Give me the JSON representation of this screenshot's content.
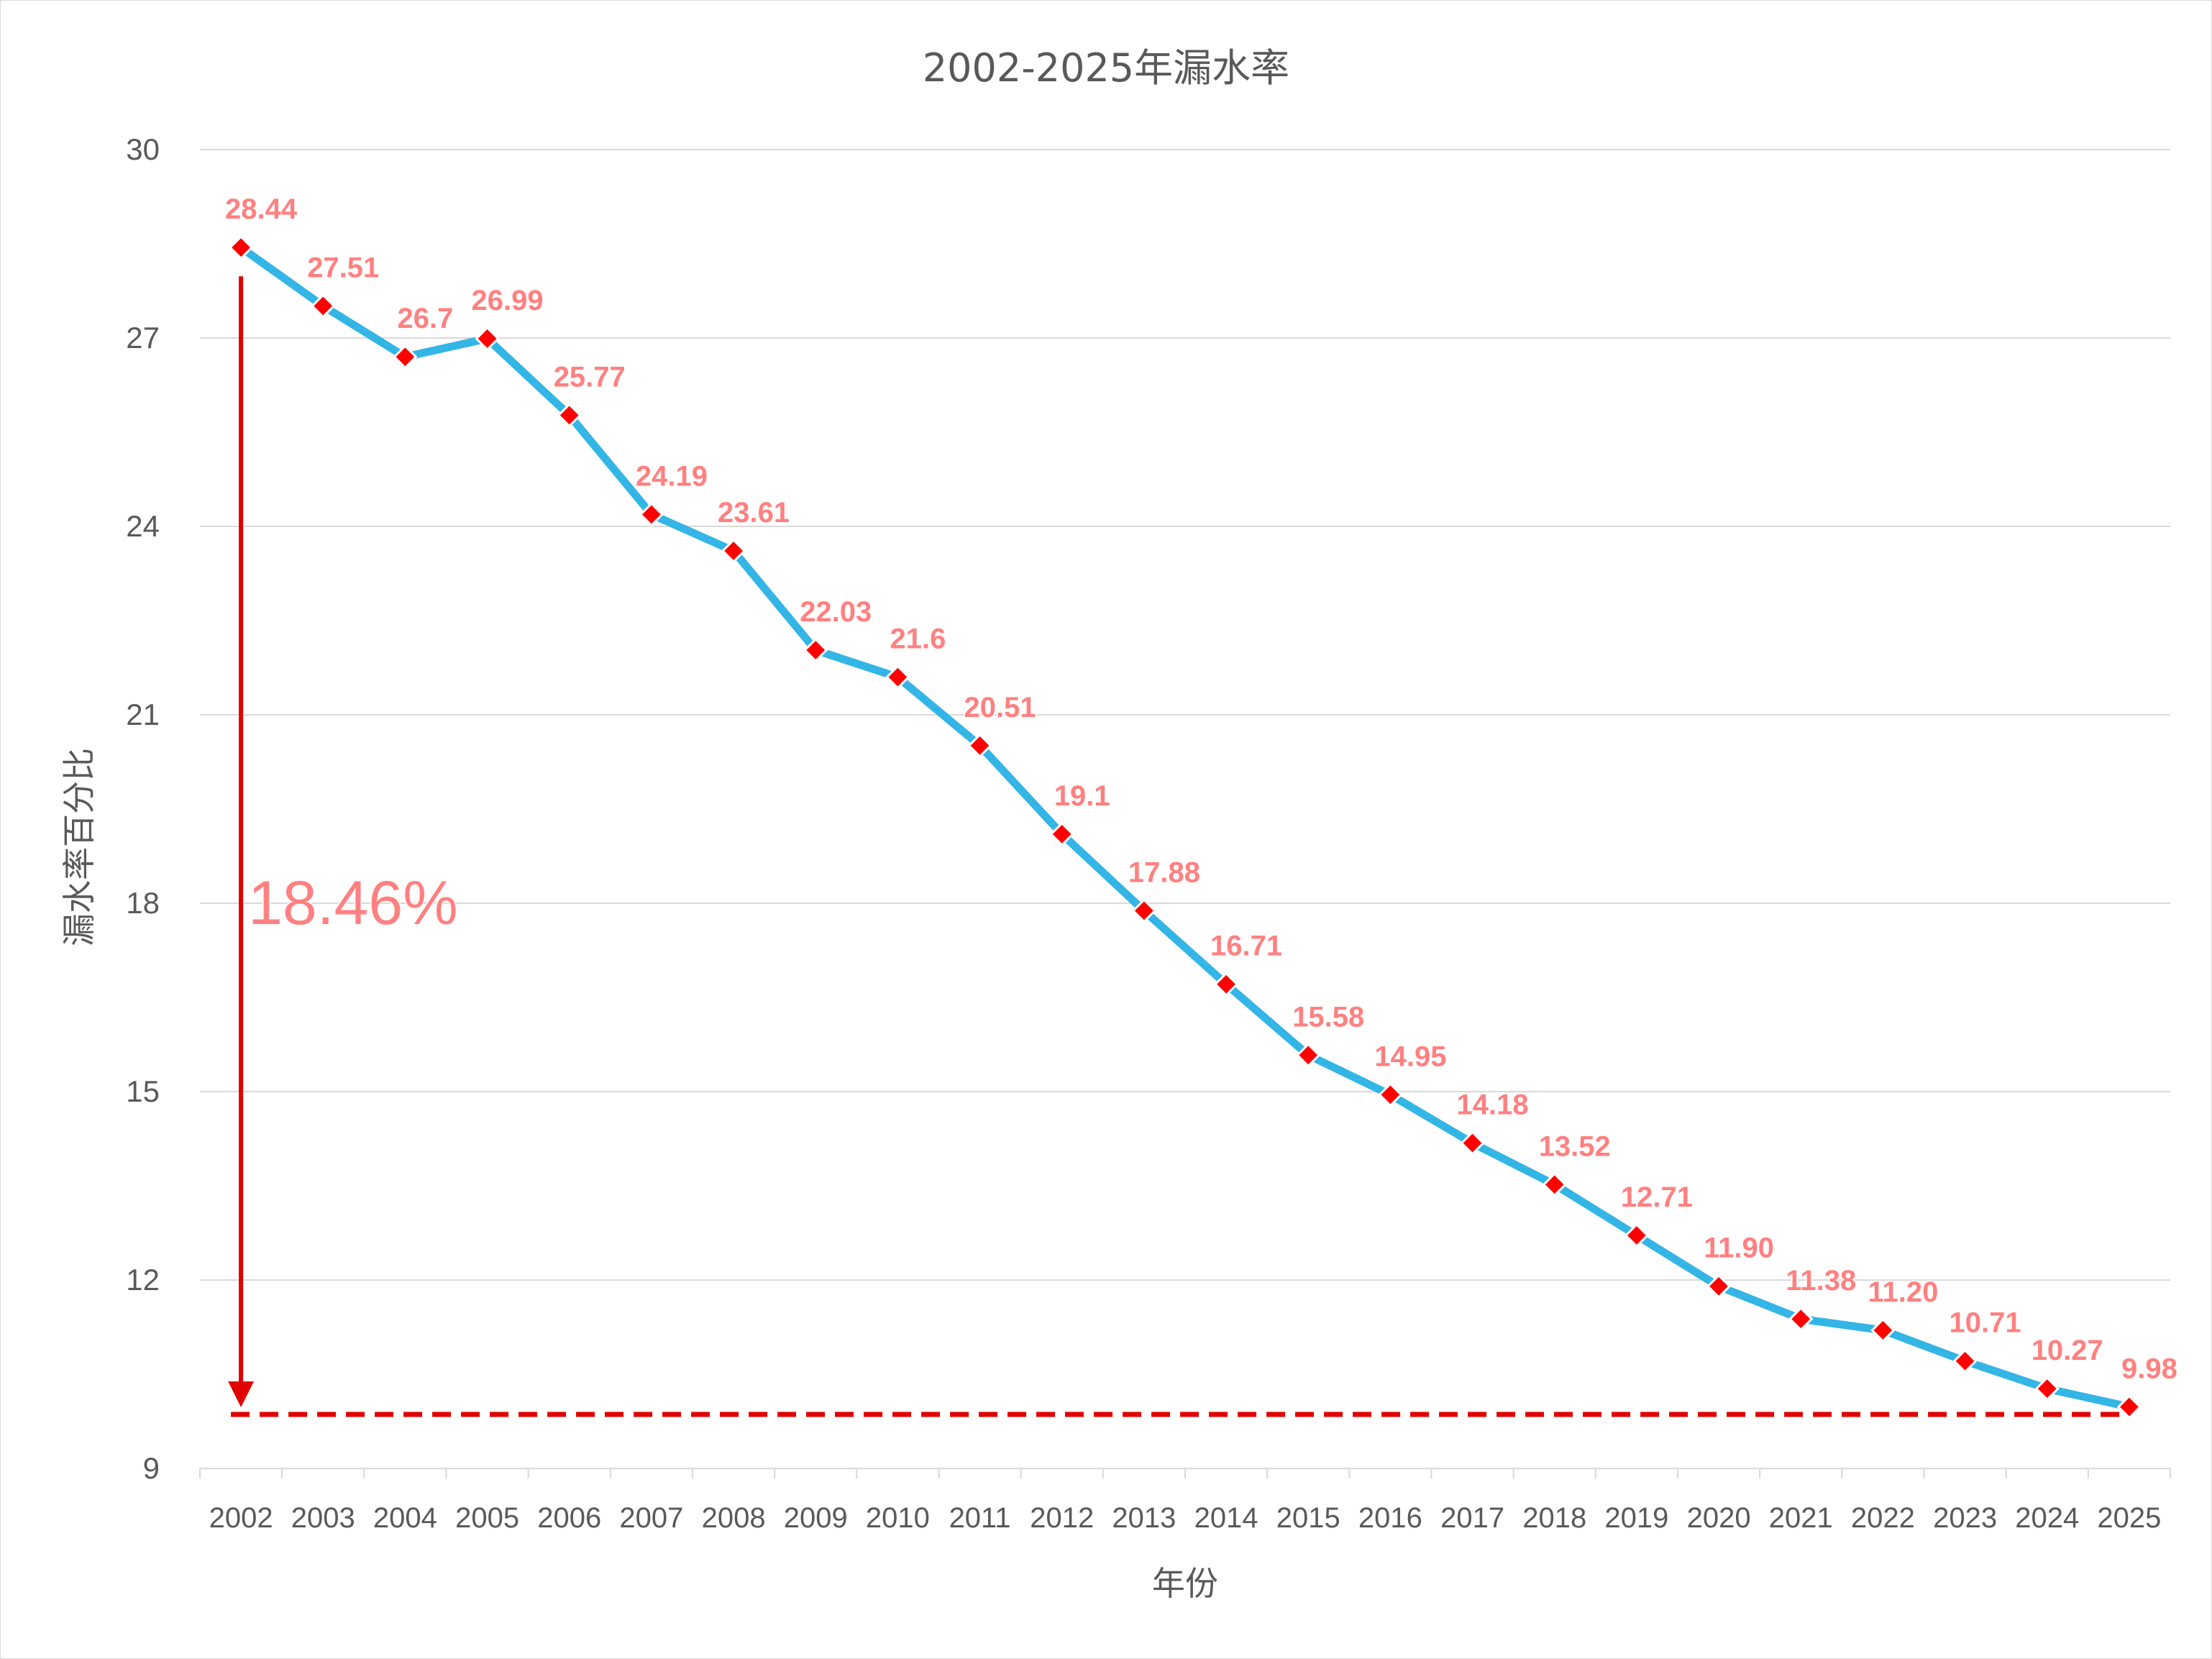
{
  "chart_data": {
    "type": "line",
    "title": "2002-2025年漏水率",
    "xlabel": "年份",
    "ylabel": "漏水率百分比",
    "ylim": [
      9,
      30
    ],
    "yticks": [
      "9",
      "12",
      "15",
      "18",
      "21",
      "24",
      "27",
      "30"
    ],
    "grid": true,
    "legend": "none",
    "categories": [
      "2002",
      "2003",
      "2004",
      "2005",
      "2006",
      "2007",
      "2008",
      "2009",
      "2010",
      "2011",
      "2012",
      "2013",
      "2014",
      "2015",
      "2016",
      "2017",
      "2018",
      "2019",
      "2020",
      "2021",
      "2022",
      "2023",
      "2024",
      "2025"
    ],
    "series": [
      {
        "values": [
          28.44,
          27.51,
          26.7,
          26.99,
          25.77,
          24.19,
          23.61,
          22.03,
          21.6,
          20.51,
          19.1,
          17.88,
          16.71,
          15.58,
          14.95,
          14.18,
          13.52,
          12.71,
          11.9,
          11.38,
          11.2,
          10.71,
          10.27,
          9.98
        ],
        "labels": [
          "28.44",
          "27.51",
          "26.7",
          "26.99",
          "25.77",
          "24.19",
          "23.61",
          "22.03",
          "21.6",
          "20.51",
          "19.1",
          "17.88",
          "16.71",
          "15.58",
          "14.95",
          "14.18",
          "13.52",
          "12.71",
          "11.90",
          "11.38",
          "11.20",
          "10.71",
          "10.27",
          "9.98"
        ]
      }
    ],
    "annotations": {
      "drop_label": "18.46%",
      "baseline_value": 9.86
    },
    "colors": {
      "line": "#33b5e5",
      "marker": "#ff0000",
      "label": "#ff8080",
      "annotation": "#e00000",
      "grid": "#d9d9d9",
      "axis_text": "#595959"
    }
  }
}
